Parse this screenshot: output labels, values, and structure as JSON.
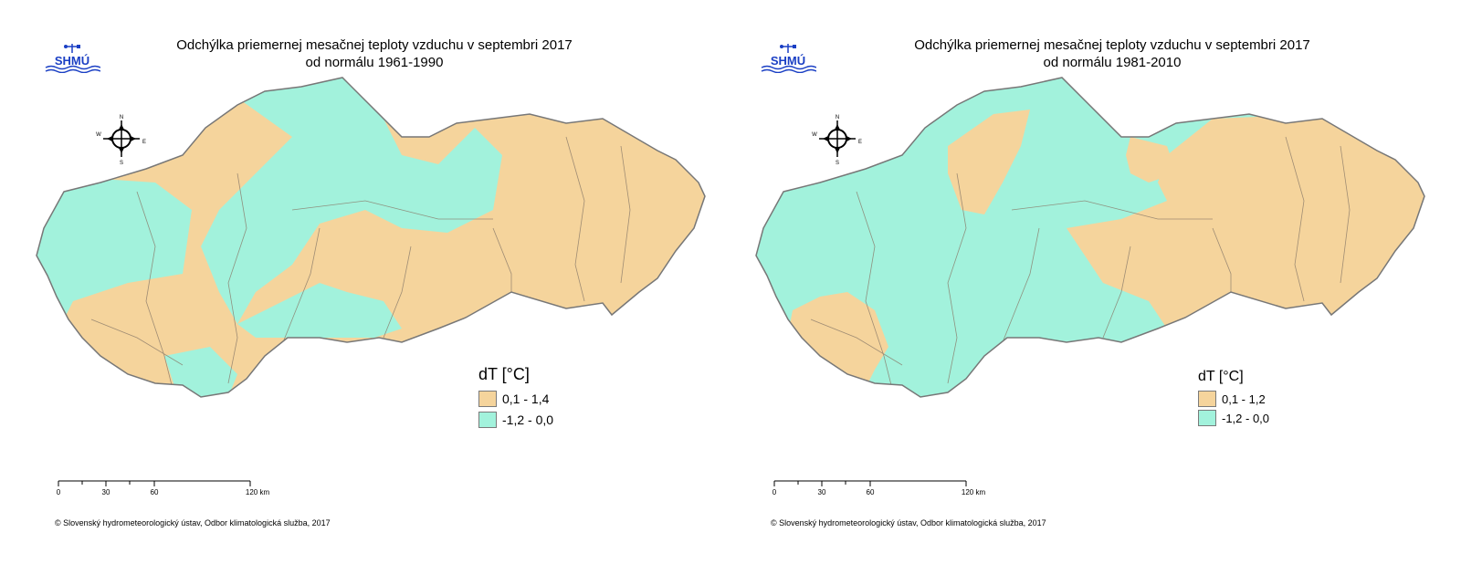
{
  "panels": [
    {
      "title_line1": "Odchýlka priemernej mesačnej teploty vzduchu v septembri 2017",
      "title_line2": "od normálu 1961-1990",
      "legend_title": "dT [°C]",
      "legend_items": [
        {
          "label": "0,1 - 1,4",
          "color": "#f5d49c"
        },
        {
          "label": "-1,2 - 0,0",
          "color": "#a2f2dc"
        }
      ]
    },
    {
      "title_line1": "Odchýlka priemernej mesačnej teploty vzduchu v septembri 2017",
      "title_line2": "od normálu 1981-2010",
      "legend_title": "dT [°C]",
      "legend_items": [
        {
          "label": "0,1 - 1,2",
          "color": "#f5d49c"
        },
        {
          "label": "-1,2 - 0,0",
          "color": "#a2f2dc"
        }
      ]
    }
  ],
  "logo_text": "SHMÚ",
  "compass": {
    "n": "N",
    "s": "S",
    "e": "E",
    "w": "W"
  },
  "scale": {
    "labels": [
      "0",
      "30",
      "60",
      "120 km"
    ]
  },
  "credit": "© Slovenský hydrometeorologický ústav, Odbor klimatologická služba, 2017"
}
